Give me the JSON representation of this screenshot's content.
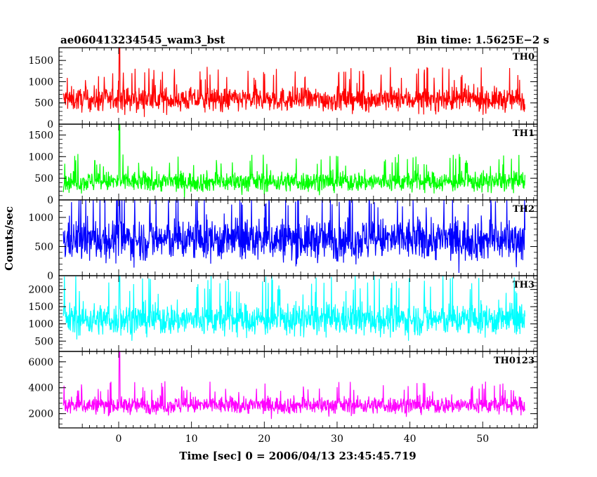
{
  "header": {
    "title": "ae060413234545_wam3_bst",
    "bin_time": "Bin time: 1.5625E−2 s"
  },
  "axes": {
    "xlabel": "Time [sec] 0 = 2006/04/13 23:45:45.719",
    "ylabel": "Counts/sec"
  },
  "chart_data": {
    "type": "line",
    "title": "ae060413234545_wam3_bst",
    "subtitle": "Bin time: 1.5625E−2 s",
    "xlabel": "Time [sec] 0 = 2006/04/13 23:45:45.719",
    "ylabel": "Counts/sec",
    "xlim": [
      -8.2,
      57.5
    ],
    "data_x_range": [
      -7.6,
      55.8
    ],
    "burst_time": 0.1,
    "xticks": [
      0,
      10,
      20,
      30,
      40,
      50
    ],
    "grid": false,
    "legend": "none",
    "panels": [
      {
        "name": "TH0",
        "color": "#ff0000",
        "ylim": [
          0,
          1800
        ],
        "yticks": [
          0,
          500,
          1000,
          1500
        ],
        "baseline": 580,
        "noise": 300,
        "low_floor": 0,
        "spike_top": 1800
      },
      {
        "name": "TH1",
        "color": "#00ff00",
        "ylim": [
          0,
          1750
        ],
        "yticks": [
          0,
          500,
          1000,
          1500
        ],
        "baseline": 420,
        "noise": 250,
        "low_floor": 0,
        "spike_top": 1750
      },
      {
        "name": "TH2",
        "color": "#0000ff",
        "ylim": [
          0,
          1300
        ],
        "yticks": [
          0,
          500,
          1000
        ],
        "baseline": 620,
        "noise": 390,
        "low_floor": 0,
        "spike_top": 1300
      },
      {
        "name": "TH3",
        "color": "#00ffff",
        "ylim": [
          200,
          2400
        ],
        "yticks": [
          500,
          1000,
          1500,
          2000
        ],
        "baseline": 1130,
        "noise": 500,
        "low_floor": 250,
        "spike_top": 2400
      },
      {
        "name": "TH0123",
        "color": "#ff00ff",
        "ylim": [
          900,
          6800
        ],
        "yticks": [
          2000,
          4000,
          6000
        ],
        "baseline": 2650,
        "noise": 720,
        "low_floor": 1000,
        "spike_top": 6800
      }
    ]
  }
}
